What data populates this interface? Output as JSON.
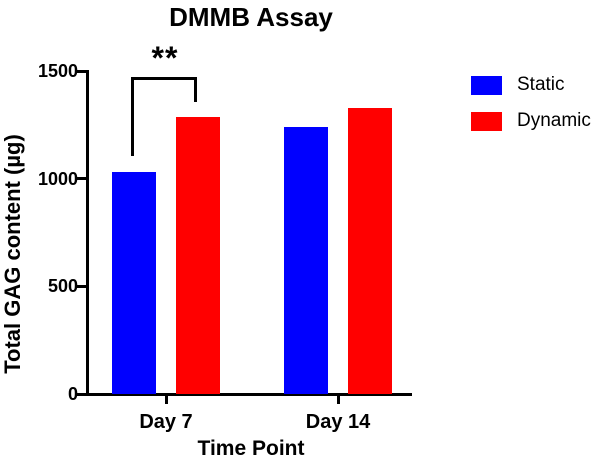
{
  "chart_data": {
    "type": "bar",
    "title": "DMMB Assay",
    "categories": [
      "Day 7",
      "Day 14"
    ],
    "series": [
      {
        "name": "Static",
        "color": "#0000FF",
        "values": [
          1030,
          1240
        ]
      },
      {
        "name": "Dynamic",
        "color": "#FF0000",
        "values": [
          1285,
          1330
        ]
      }
    ],
    "xlabel": "Time Point",
    "ylabel": "Total GAG content (µg)",
    "ylim": [
      0,
      1500
    ],
    "yticks": [
      0,
      500,
      1000,
      1500
    ],
    "grid": false,
    "legend_position": "right",
    "annotation": {
      "label": "**",
      "between": [
        "Day 7 Static",
        "Day 7 Dynamic"
      ]
    }
  }
}
